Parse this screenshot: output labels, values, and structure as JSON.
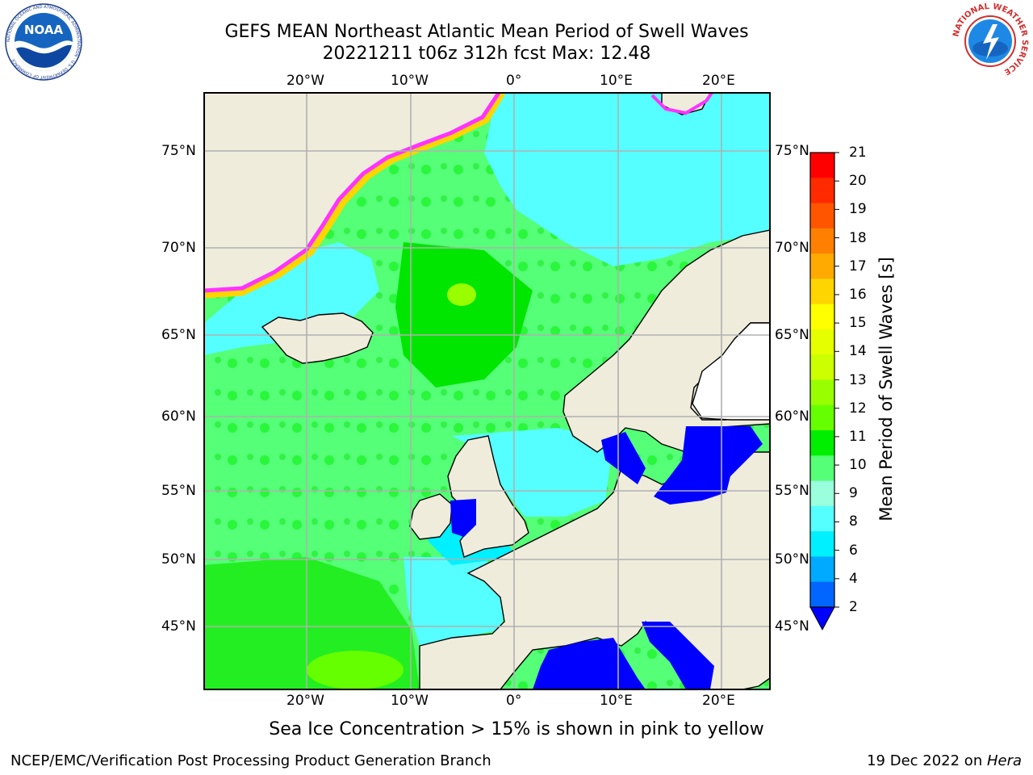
{
  "title_line1": "GEFS MEAN Northeast Atlantic Mean Period of Swell Waves",
  "title_line2": "20221211 t06z 312h fcst   Max: 12.48",
  "top_lon_labels": [
    "20°W",
    "10°W",
    "0°",
    "10°E",
    "20°E"
  ],
  "bottom_lon_labels": [
    "20°W",
    "10°W",
    "0°",
    "10°E",
    "20°E"
  ],
  "left_lat_labels": [
    "75°N",
    "70°N",
    "65°N",
    "60°N",
    "55°N",
    "50°N",
    "45°N"
  ],
  "right_lat_labels": [
    "75°N",
    "70°N",
    "65°N",
    "60°N",
    "55°N",
    "50°N",
    "45°N"
  ],
  "colorbar": {
    "label": "Mean Period of Swell Waves [s]",
    "ticks": [
      "21",
      "20",
      "19",
      "18",
      "17",
      "16",
      "15",
      "14",
      "13",
      "12",
      "11",
      "10",
      "9",
      "8",
      "6",
      "4",
      "2"
    ],
    "colors": [
      "#ff0000",
      "#ff2a00",
      "#ff5500",
      "#ff8000",
      "#ffaa00",
      "#ffd500",
      "#ffff00",
      "#e6ff00",
      "#ccff00",
      "#99ff00",
      "#66ff00",
      "#00ee00",
      "#55ff77",
      "#99ffdd",
      "#55ffff",
      "#00f0ff",
      "#00aaff",
      "#0066ff",
      "#0000ff"
    ]
  },
  "caption": "Sea Ice Concentration > 15% is shown in pink to yellow",
  "footer_left": "NCEP/EMC/Verification Post Processing Product Generation Branch",
  "footer_right_date": "19 Dec 2022 on ",
  "footer_right_host": "Hera",
  "logos": {
    "noaa": {
      "text": "NOAA",
      "ring_text": "NATIONAL OCEANIC AND ATMOSPHERIC ADMINISTRATION · U.S. DEPARTMENT OF COMMERCE"
    },
    "nws": {
      "ring_text": "NATIONAL WEATHER SERVICE"
    }
  },
  "map_colors": {
    "land": "#efecdc",
    "ocean_low": "#00ffff",
    "ocean_mid": "#55ff77",
    "ocean_high": "#00e600",
    "enclosed_seas": "#0000ff",
    "ice": "#ff33ff",
    "ice_edge": "#ffd500"
  }
}
